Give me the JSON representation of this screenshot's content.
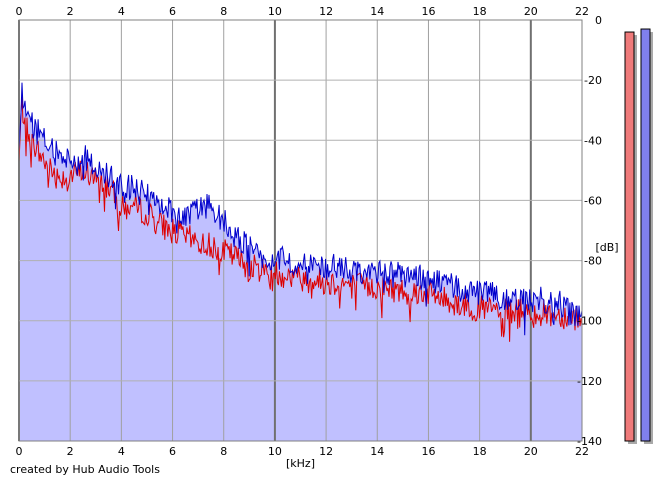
{
  "chart_data": {
    "type": "line",
    "x_unit_label": "[kHz]",
    "y_unit_label": "[dB]",
    "xlim": [
      0,
      22
    ],
    "ylim": [
      -140,
      0
    ],
    "x_ticks": [
      "0",
      "2",
      "4",
      "6",
      "8",
      "10",
      "12",
      "14",
      "16",
      "18",
      "20",
      "22"
    ],
    "y_ticks": [
      "0",
      "-20",
      "-40",
      "-60",
      "-80",
      "-100",
      "-120",
      "-140"
    ],
    "grid": true,
    "fill_color": "#c0c0ff",
    "series": [
      {
        "color": "#dd0000",
        "x": [
          0,
          0.1,
          0.3,
          0.6,
          1,
          1.5,
          2,
          2.5,
          3,
          3.5,
          4,
          4.5,
          5,
          5.5,
          6,
          6.5,
          7,
          7.5,
          8,
          8.5,
          9,
          9.5,
          10,
          11,
          12,
          13,
          14,
          15,
          16,
          17,
          18,
          19,
          20,
          21,
          22
        ],
        "y": [
          -48,
          -28,
          -36,
          -42,
          -47,
          -52,
          -52,
          -50,
          -53,
          -55,
          -63,
          -62,
          -64,
          -68,
          -70,
          -72,
          -74,
          -75,
          -77,
          -79,
          -82,
          -83,
          -84,
          -86,
          -87,
          -88,
          -89,
          -90,
          -91,
          -94,
          -96,
          -97,
          -97,
          -98,
          -99
        ]
      },
      {
        "color": "#0000cc",
        "x": [
          0,
          0.1,
          0.3,
          0.6,
          1,
          1.5,
          2,
          2.5,
          3,
          3.5,
          4,
          4.5,
          5,
          5.5,
          6,
          6.5,
          7,
          7.5,
          8,
          8.5,
          9,
          9.5,
          10,
          11,
          12,
          13,
          14,
          15,
          16,
          17,
          18,
          19,
          20,
          21,
          22
        ],
        "y": [
          -45,
          -24,
          -30,
          -36,
          -40,
          -45,
          -46,
          -45,
          -49,
          -52,
          -56,
          -56,
          -57,
          -60,
          -64,
          -65,
          -63,
          -61,
          -66,
          -72,
          -76,
          -78,
          -79,
          -81,
          -82,
          -83,
          -84,
          -85,
          -86,
          -89,
          -91,
          -92,
          -93,
          -93,
          -100
        ]
      }
    ]
  },
  "level_meters": [
    {
      "color": "#ef7a7a",
      "level_db": -4
    },
    {
      "color": "#8080ee",
      "level_db": -3
    }
  ],
  "footer": {
    "credit": "created by Hub Audio Tools"
  }
}
